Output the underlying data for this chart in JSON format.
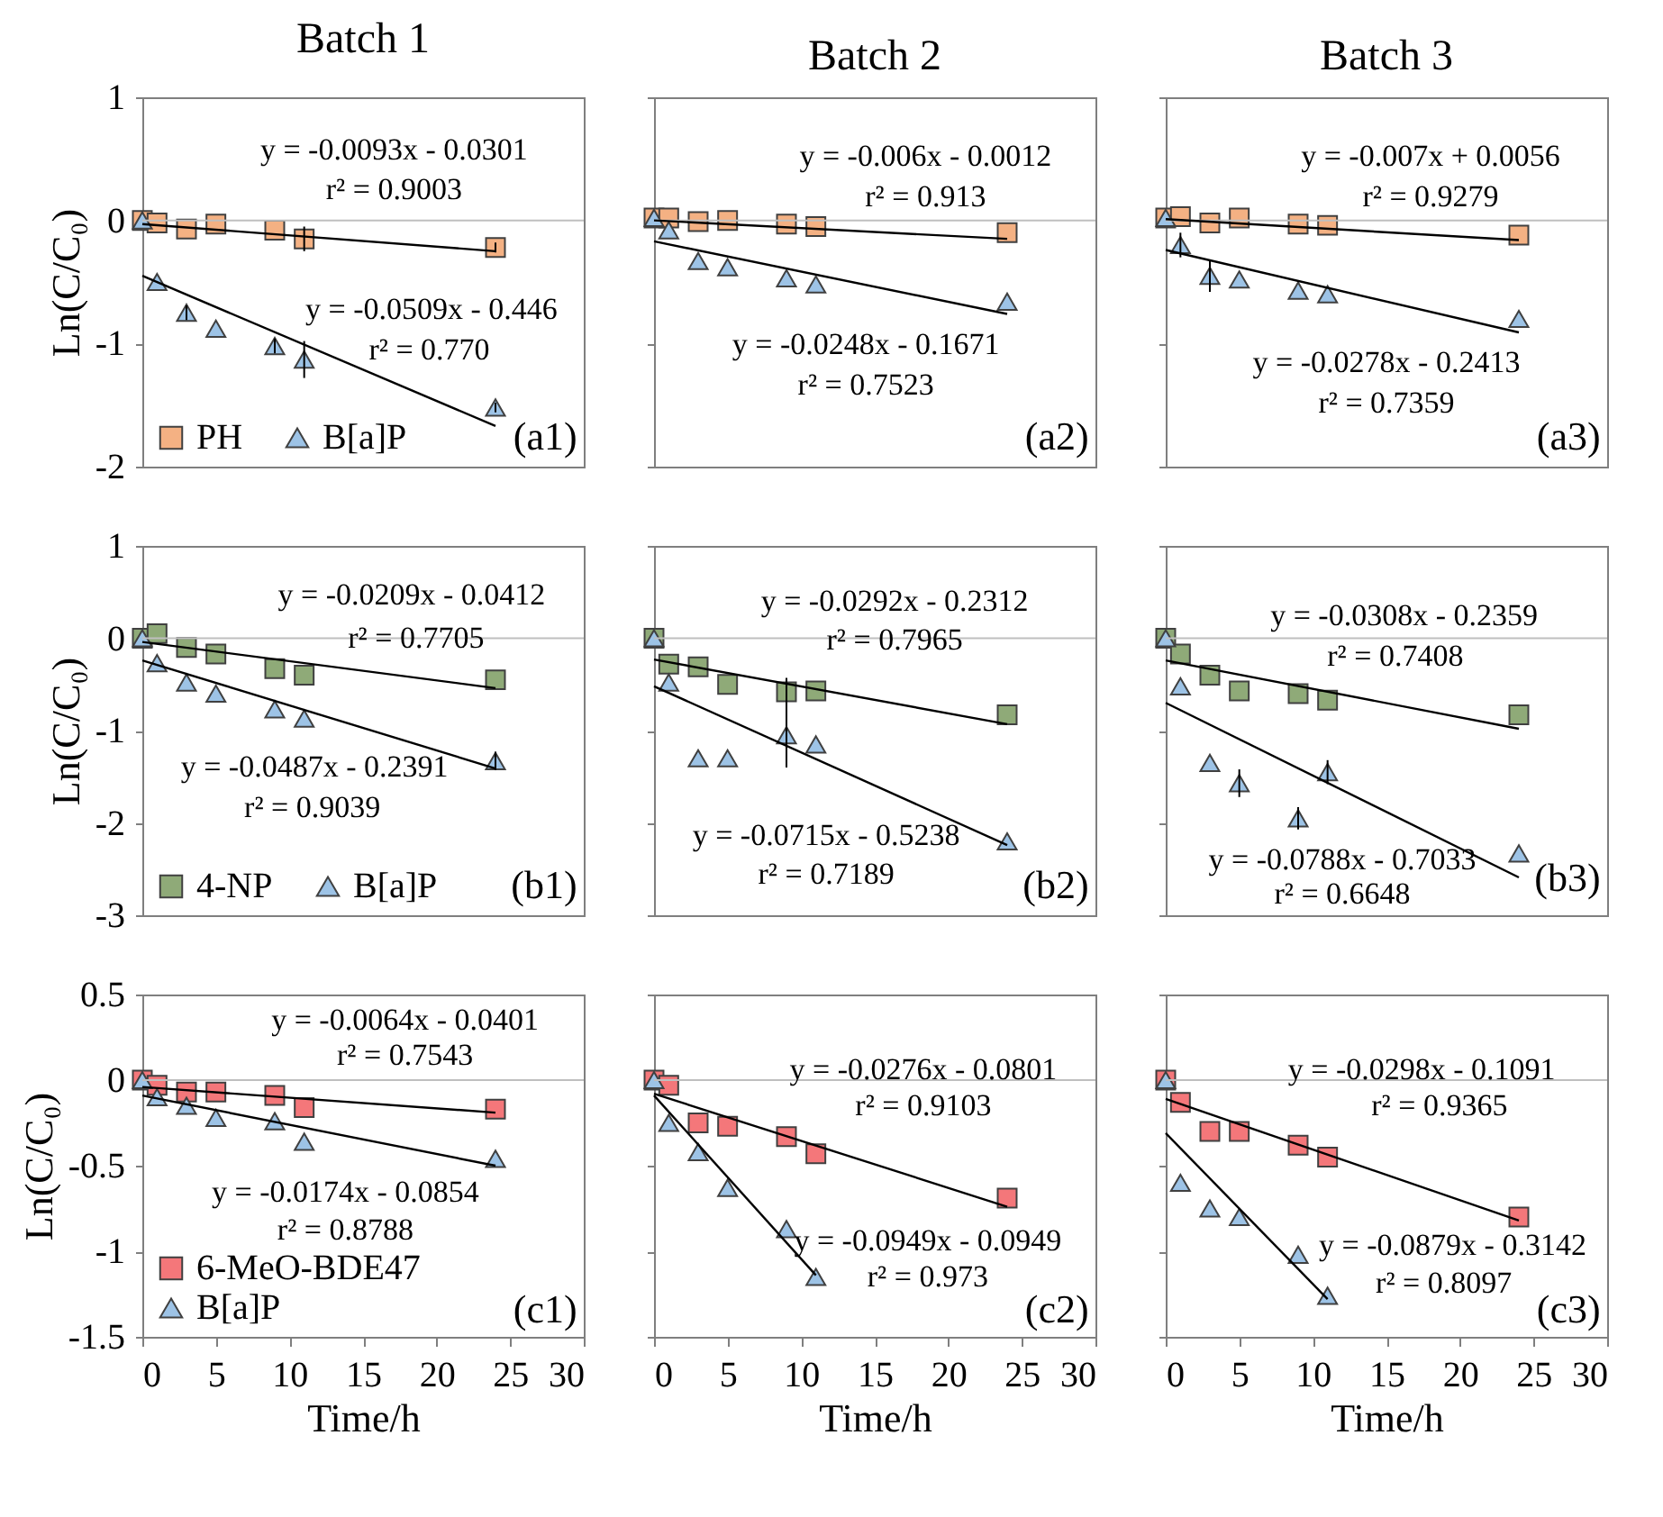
{
  "chart_data": [
    {
      "type": "scatter",
      "title": "Batch 1",
      "ylabel": "Ln(C/C₀)",
      "x": [
        0,
        1,
        3,
        5,
        9,
        11,
        24
      ],
      "xlim": [
        0,
        30
      ],
      "xticks": [
        0,
        5,
        10,
        15,
        20,
        25,
        30
      ],
      "ylim": [
        -2,
        1
      ],
      "yticks": [
        -2,
        -1,
        0,
        1
      ],
      "tick_labels": "y",
      "legend": "bottom left",
      "ref_lines": [
        {
          "axis": "y",
          "value": 0,
          "color": "#bfbfbf"
        }
      ],
      "annotations": [
        "y = -0.0093x  - 0.0301",
        "r² = 0.9003",
        "y = -0.0509x  - 0.446",
        "r² = 0.770",
        "(a1)"
      ],
      "series": [
        {
          "name": "PH",
          "type": "scatter",
          "marker": "square",
          "color": "#f4b183",
          "values": [
            0,
            -0.02,
            -0.07,
            -0.03,
            -0.08,
            -0.15,
            -0.22
          ],
          "errors": [
            null,
            null,
            null,
            null,
            null,
            0.1,
            0.04
          ]
        },
        {
          "name": "B[a]P",
          "type": "scatter",
          "marker": "triangle",
          "color": "#9dc3e6",
          "values": [
            0,
            -0.5,
            -0.75,
            -0.88,
            -1.02,
            -1.13,
            -1.52
          ],
          "errors": [
            null,
            null,
            0.06,
            null,
            0.06,
            0.15,
            0.04
          ]
        },
        {
          "type": "line",
          "color": "#000000",
          "x": [
            0,
            24
          ],
          "values": [
            -0.03,
            -0.25
          ]
        },
        {
          "type": "line",
          "color": "#000000",
          "x": [
            0,
            24
          ],
          "values": [
            -0.45,
            -1.67
          ]
        }
      ]
    },
    {
      "type": "scatter",
      "title": "Batch 2",
      "x": [
        0,
        1,
        3,
        5,
        9,
        11,
        24
      ],
      "xlim": [
        0,
        30
      ],
      "xticks": [
        0,
        5,
        10,
        15,
        20,
        25,
        30
      ],
      "ylim": [
        -2,
        1
      ],
      "yticks": [
        -2,
        -1,
        0,
        1
      ],
      "tick_labels": false,
      "ref_lines": [
        {
          "axis": "y",
          "value": 0,
          "color": "#bfbfbf"
        }
      ],
      "annotations": [
        "y = -0.006x  - 0.0012",
        "r² = 0.913",
        "y = -0.0248x  - 0.1671",
        "r² = 0.7523",
        "(a2)"
      ],
      "series": [
        {
          "type": "scatter",
          "marker": "square",
          "color": "#f4b183",
          "values": [
            0.02,
            0.02,
            -0.01,
            0,
            -0.03,
            -0.05,
            -0.1
          ]
        },
        {
          "type": "scatter",
          "marker": "triangle",
          "color": "#9dc3e6",
          "values": [
            0.02,
            -0.08,
            -0.33,
            -0.38,
            -0.47,
            -0.52,
            -0.66
          ]
        },
        {
          "type": "line",
          "color": "#000000",
          "x": [
            0,
            24
          ],
          "values": [
            0,
            -0.15
          ]
        },
        {
          "type": "line",
          "color": "#000000",
          "x": [
            0,
            24
          ],
          "values": [
            -0.17,
            -0.76
          ]
        }
      ]
    },
    {
      "type": "scatter",
      "title": "Batch 3",
      "x": [
        0,
        1,
        3,
        5,
        9,
        11,
        24
      ],
      "xlim": [
        0,
        30
      ],
      "xticks": [
        0,
        5,
        10,
        15,
        20,
        25,
        30
      ],
      "ylim": [
        -2,
        1
      ],
      "yticks": [
        -2,
        -1,
        0,
        1
      ],
      "tick_labels": false,
      "ref_lines": [
        {
          "axis": "y",
          "value": 0,
          "color": "#bfbfbf"
        }
      ],
      "annotations": [
        "y = -0.007x + 0.0056",
        "r² = 0.9279",
        "y = -0.0278x  - 0.2413",
        "r² = 0.7359",
        "(a3)"
      ],
      "series": [
        {
          "type": "scatter",
          "marker": "square",
          "color": "#f4b183",
          "values": [
            0.02,
            0.03,
            -0.02,
            0.02,
            -0.03,
            -0.04,
            -0.12
          ]
        },
        {
          "type": "scatter",
          "marker": "triangle",
          "color": "#9dc3e6",
          "values": [
            0.02,
            -0.2,
            -0.45,
            -0.48,
            -0.57,
            -0.6,
            -0.8
          ],
          "errors": [
            null,
            0.1,
            0.13,
            null,
            null,
            null,
            null
          ]
        },
        {
          "type": "line",
          "color": "#000000",
          "x": [
            0,
            24
          ],
          "values": [
            0.01,
            -0.16
          ]
        },
        {
          "type": "line",
          "color": "#000000",
          "x": [
            0,
            24
          ],
          "values": [
            -0.24,
            -0.91
          ]
        }
      ]
    },
    {
      "type": "scatter",
      "ylabel": "Ln(C/C₀)",
      "x": [
        0,
        1,
        3,
        5,
        9,
        11,
        24
      ],
      "xlim": [
        0,
        30
      ],
      "xticks": [
        0,
        5,
        10,
        15,
        20,
        25,
        30
      ],
      "ylim": [
        -3,
        1
      ],
      "yticks": [
        -3,
        -2,
        -1,
        0,
        1
      ],
      "tick_labels": "y",
      "legend": "bottom left",
      "ref_lines": [
        {
          "axis": "y",
          "value": 0,
          "color": "#bfbfbf"
        }
      ],
      "annotations": [
        "y = -0.0209x  - 0.0412",
        "r² = 0.7705",
        "y = -0.0487x  - 0.2391",
        "r² = 0.9039",
        "(b1)"
      ],
      "series": [
        {
          "name": "4-NP",
          "type": "scatter",
          "marker": "square",
          "color": "#8faa78",
          "values": [
            0,
            0.05,
            -0.1,
            -0.17,
            -0.33,
            -0.4,
            -0.45
          ]
        },
        {
          "name": "B[a]P",
          "type": "scatter",
          "marker": "triangle",
          "color": "#9dc3e6",
          "values": [
            0,
            -0.27,
            -0.48,
            -0.6,
            -0.77,
            -0.87,
            -1.33
          ],
          "errors": [
            null,
            null,
            null,
            null,
            null,
            null,
            0.1
          ]
        },
        {
          "type": "line",
          "color": "#000000",
          "x": [
            0,
            24
          ],
          "values": [
            -0.04,
            -0.54
          ]
        },
        {
          "type": "line",
          "color": "#000000",
          "x": [
            0,
            24
          ],
          "values": [
            -0.24,
            -1.41
          ]
        }
      ]
    },
    {
      "type": "scatter",
      "x": [
        0,
        1,
        3,
        5,
        9,
        11,
        24
      ],
      "xlim": [
        0,
        30
      ],
      "xticks": [
        0,
        5,
        10,
        15,
        20,
        25,
        30
      ],
      "ylim": [
        -3,
        1
      ],
      "yticks": [
        -3,
        -2,
        -1,
        0,
        1
      ],
      "tick_labels": false,
      "ref_lines": [
        {
          "axis": "y",
          "value": 0,
          "color": "#bfbfbf"
        }
      ],
      "annotations": [
        "y = -0.0292x  - 0.2312",
        "r² = 0.7965",
        "y = -0.0715x  - 0.5238",
        "r² = 0.7189",
        "(b2)"
      ],
      "series": [
        {
          "type": "scatter",
          "marker": "square",
          "color": "#8faa78",
          "values": [
            0,
            -0.28,
            -0.31,
            -0.5,
            -0.58,
            -0.57,
            -0.83
          ],
          "errors": [
            null,
            null,
            null,
            null,
            0.15,
            null,
            null
          ]
        },
        {
          "type": "scatter",
          "marker": "triangle",
          "color": "#9dc3e6",
          "values": [
            0,
            -0.48,
            -1.3,
            -1.3,
            -1.05,
            -1.15,
            -2.2
          ],
          "errors": [
            null,
            null,
            null,
            null,
            0.35,
            null,
            null
          ]
        },
        {
          "type": "line",
          "color": "#000000",
          "x": [
            0,
            24
          ],
          "values": [
            -0.23,
            -0.93
          ]
        },
        {
          "type": "line",
          "color": "#000000",
          "x": [
            0,
            24
          ],
          "values": [
            -0.52,
            -2.24
          ]
        }
      ]
    },
    {
      "type": "scatter",
      "x": [
        0,
        1,
        3,
        5,
        9,
        11,
        24
      ],
      "xlim": [
        0,
        30
      ],
      "xticks": [
        0,
        5,
        10,
        15,
        20,
        25,
        30
      ],
      "ylim": [
        -3,
        1
      ],
      "yticks": [
        -3,
        -2,
        -1,
        0,
        1
      ],
      "tick_labels": false,
      "ref_lines": [
        {
          "axis": "y",
          "value": 0,
          "color": "#bfbfbf"
        }
      ],
      "annotations": [
        "y = -0.0308x  - 0.2359",
        "r² = 0.7408",
        "y = -0.0788x  - 0.7033",
        "r² = 0.6648",
        "(b3)"
      ],
      "series": [
        {
          "type": "scatter",
          "marker": "square",
          "color": "#8faa78",
          "values": [
            0,
            -0.17,
            -0.4,
            -0.57,
            -0.6,
            -0.67,
            -0.83
          ]
        },
        {
          "type": "scatter",
          "marker": "triangle",
          "color": "#9dc3e6",
          "values": [
            0,
            -0.52,
            -1.35,
            -1.57,
            -1.95,
            -1.45,
            -2.33
          ],
          "errors": [
            null,
            null,
            null,
            0.15,
            0.12,
            0.13,
            null
          ]
        },
        {
          "type": "line",
          "color": "#000000",
          "x": [
            0,
            24
          ],
          "values": [
            -0.24,
            -0.98
          ]
        },
        {
          "type": "line",
          "color": "#000000",
          "x": [
            0,
            24
          ],
          "values": [
            -0.7,
            -2.59
          ]
        }
      ]
    },
    {
      "type": "scatter",
      "ylabel": "Ln(C/C₀)",
      "xlabel": "Time/h",
      "x": [
        0,
        1,
        3,
        5,
        9,
        11,
        24
      ],
      "xlim": [
        0,
        30
      ],
      "xticks": [
        0,
        5,
        10,
        15,
        20,
        25,
        30
      ],
      "ylim": [
        -1.5,
        0.5
      ],
      "yticks": [
        -1.5,
        -1,
        -0.5,
        0,
        0.5
      ],
      "legend": "bottom left",
      "ref_lines": [
        {
          "axis": "y",
          "value": 0,
          "color": "#bfbfbf"
        }
      ],
      "annotations": [
        "y = -0.0064x  - 0.0401",
        "r² = 0.7543",
        "y = -0.0174x  - 0.0854",
        "r² = 0.8788",
        "(c1)"
      ],
      "series": [
        {
          "name": "6-MeO-BDE47",
          "type": "scatter",
          "marker": "square",
          "color": "#f4777a",
          "values": [
            0,
            -0.03,
            -0.07,
            -0.07,
            -0.09,
            -0.16,
            -0.17
          ]
        },
        {
          "name": "B[a]P",
          "type": "scatter",
          "marker": "triangle",
          "color": "#9dc3e6",
          "values": [
            0,
            -0.1,
            -0.15,
            -0.22,
            -0.24,
            -0.36,
            -0.46
          ]
        },
        {
          "type": "line",
          "color": "#000000",
          "x": [
            0,
            24
          ],
          "values": [
            -0.04,
            -0.19
          ]
        },
        {
          "type": "line",
          "color": "#000000",
          "x": [
            0,
            24
          ],
          "values": [
            -0.09,
            -0.5
          ]
        }
      ]
    },
    {
      "type": "scatter",
      "xlabel": "Time/h",
      "x": [
        0,
        1,
        3,
        5,
        9,
        11,
        24
      ],
      "xlim": [
        0,
        30
      ],
      "xticks": [
        0,
        5,
        10,
        15,
        20,
        25,
        30
      ],
      "ylim": [
        -1.5,
        0.5
      ],
      "yticks": [
        -1.5,
        -1,
        -0.5,
        0,
        0.5
      ],
      "tick_labels": "x",
      "ref_lines": [
        {
          "axis": "y",
          "value": 0,
          "color": "#bfbfbf"
        }
      ],
      "annotations": [
        "y = -0.0276x  - 0.0801",
        "r² = 0.9103",
        "y = -0.0949x  - 0.0949",
        "r² = 0.973",
        "(c2)"
      ],
      "series": [
        {
          "type": "scatter",
          "marker": "square",
          "color": "#f4777a",
          "values": [
            0,
            -0.03,
            -0.25,
            -0.27,
            -0.33,
            -0.43,
            -0.69
          ]
        },
        {
          "type": "scatter",
          "marker": "triangle",
          "color": "#9dc3e6",
          "x": [
            0,
            1,
            3,
            5,
            9,
            11
          ],
          "values": [
            0,
            -0.25,
            -0.42,
            -0.63,
            -0.87,
            -1.15
          ]
        },
        {
          "type": "line",
          "color": "#000000",
          "x": [
            0,
            24
          ],
          "values": [
            -0.08,
            -0.74
          ]
        },
        {
          "type": "line",
          "color": "#000000",
          "x": [
            0,
            11
          ],
          "values": [
            -0.09,
            -1.14
          ]
        }
      ]
    },
    {
      "type": "scatter",
      "xlabel": "Time/h",
      "x": [
        0,
        1,
        3,
        5,
        9,
        11,
        24
      ],
      "xlim": [
        0,
        30
      ],
      "xticks": [
        0,
        5,
        10,
        15,
        20,
        25,
        30
      ],
      "ylim": [
        -1.5,
        0.5
      ],
      "yticks": [
        -1.5,
        -1,
        -0.5,
        0,
        0.5
      ],
      "tick_labels": "x",
      "ref_lines": [
        {
          "axis": "y",
          "value": 0,
          "color": "#bfbfbf"
        }
      ],
      "annotations": [
        "y = -0.0298x  - 0.1091",
        "r² = 0.9365",
        "y = -0.0879x  - 0.3142",
        "r² = 0.8097",
        "(c3)"
      ],
      "series": [
        {
          "type": "scatter",
          "marker": "square",
          "color": "#f4777a",
          "values": [
            0,
            -0.13,
            -0.3,
            -0.3,
            -0.38,
            -0.45,
            -0.8
          ]
        },
        {
          "type": "scatter",
          "marker": "triangle",
          "color": "#9dc3e6",
          "x": [
            0,
            1,
            3,
            5,
            9,
            11
          ],
          "values": [
            0,
            -0.6,
            -0.75,
            -0.8,
            -1.02,
            -1.26
          ]
        },
        {
          "type": "line",
          "color": "#000000",
          "x": [
            0,
            24
          ],
          "values": [
            -0.11,
            -0.82
          ]
        },
        {
          "type": "line",
          "color": "#000000",
          "x": [
            0,
            11
          ],
          "values": [
            -0.31,
            -1.28
          ]
        }
      ]
    }
  ]
}
